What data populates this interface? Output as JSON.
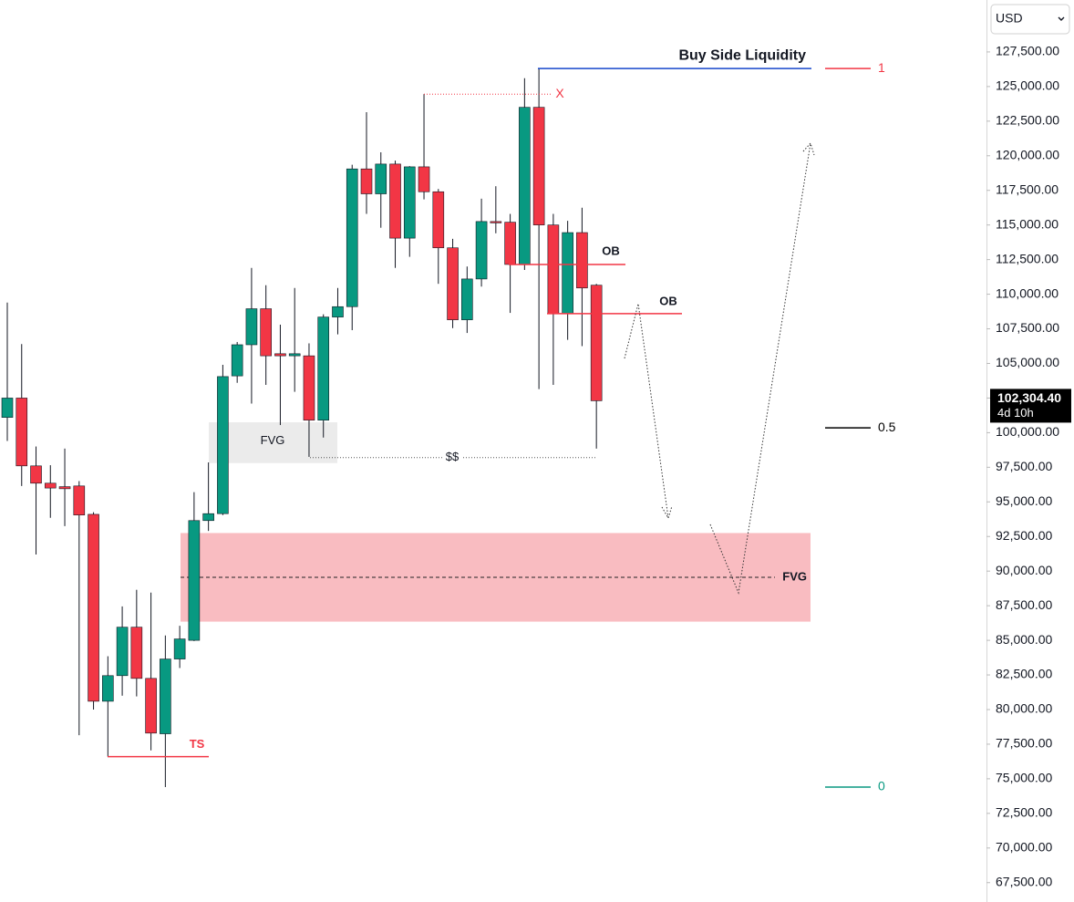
{
  "chart_data": {
    "type": "candlestick",
    "currency": "USD",
    "open": [
      101100,
      102500,
      97600,
      96350,
      96100,
      96150,
      94100,
      80600,
      82450,
      85950,
      82250,
      78250,
      83650,
      85000,
      93650,
      94150,
      104100,
      106350,
      108950,
      105700,
      105550,
      105550,
      100900,
      108350,
      109100,
      119050,
      117250,
      119400,
      114050,
      119200,
      117400,
      113350,
      108150,
      111100,
      115250,
      115200,
      112150,
      123500,
      115000,
      108600,
      114450,
      110650
    ],
    "high": [
      109400,
      106400,
      99000,
      97650,
      98850,
      96500,
      94250,
      83850,
      87450,
      88650,
      88450,
      85350,
      86050,
      95700,
      97850,
      104900,
      106550,
      111900,
      110650,
      107800,
      110450,
      106450,
      108550,
      110450,
      119350,
      123150,
      120250,
      119650,
      119250,
      124450,
      117600,
      114000,
      112000,
      116900,
      117800,
      115800,
      125600,
      126300,
      115800,
      115300,
      116250,
      110750
    ],
    "low": [
      99400,
      96150,
      91200,
      93850,
      93250,
      78150,
      80000,
      76600,
      81000,
      80950,
      77050,
      74400,
      83000,
      84950,
      92900,
      94050,
      103600,
      102100,
      103450,
      100550,
      102950,
      98250,
      99650,
      107100,
      107400,
      115800,
      114800,
      111900,
      112700,
      116850,
      110750,
      107550,
      107200,
      110550,
      114400,
      108650,
      111750,
      103150,
      103450,
      106700,
      106250,
      98850
    ],
    "close": [
      102500,
      97600,
      96350,
      96000,
      95950,
      94050,
      80600,
      82450,
      85950,
      82250,
      78300,
      83650,
      85100,
      93650,
      94150,
      104050,
      106350,
      108950,
      105550,
      105550,
      105700,
      100900,
      108350,
      109100,
      119050,
      117250,
      119400,
      114050,
      119200,
      117400,
      113350,
      108150,
      111100,
      115250,
      115200,
      112150,
      123500,
      115000,
      108600,
      114450,
      110450,
      102304.4
    ],
    "up_color": "#089981",
    "down_color": "#f23645",
    "last_price_label": "102,304.40",
    "countdown": "4d 10h",
    "ylim": [
      66100,
      131250
    ],
    "yticks": [
      {
        "value": 67500,
        "label": "67,500.00"
      },
      {
        "value": 70000,
        "label": "70,000.00"
      },
      {
        "value": 72500,
        "label": "72,500.00"
      },
      {
        "value": 75000,
        "label": "75,000.00"
      },
      {
        "value": 77500,
        "label": "77,500.00"
      },
      {
        "value": 80000,
        "label": "80,000.00"
      },
      {
        "value": 82500,
        "label": "82,500.00"
      },
      {
        "value": 85000,
        "label": "85,000.00"
      },
      {
        "value": 87500,
        "label": "87,500.00"
      },
      {
        "value": 90000,
        "label": "90,000.00"
      },
      {
        "value": 92500,
        "label": "92,500.00"
      },
      {
        "value": 95000,
        "label": "95,000.00"
      },
      {
        "value": 97500,
        "label": "97,500.00"
      },
      {
        "value": 100000,
        "label": "100,000.00"
      },
      {
        "value": 102500,
        "label": "102,500.00"
      },
      {
        "value": 105000,
        "label": "105,000.00"
      },
      {
        "value": 107500,
        "label": "107,500.00"
      },
      {
        "value": 110000,
        "label": "110,000.00"
      },
      {
        "value": 112500,
        "label": "112,500.00"
      },
      {
        "value": 115000,
        "label": "115,000.00"
      },
      {
        "value": 117500,
        "label": "117,500.00"
      },
      {
        "value": 120000,
        "label": "120,000.00"
      },
      {
        "value": 122500,
        "label": "122,500.00"
      },
      {
        "value": 125000,
        "label": "125,000.00"
      },
      {
        "value": 127500,
        "label": "127,500.00"
      }
    ],
    "annotations": [
      {
        "text": "Buy Side Liquidity",
        "value": 126300,
        "color": "#1848cc"
      },
      {
        "text": "X",
        "value": 124450,
        "color": "#f23645"
      },
      {
        "text": "OB",
        "value": 112150,
        "color": "#f23645"
      },
      {
        "text": "OB",
        "value": 108600,
        "color": "#f23645"
      },
      {
        "text": "$$",
        "value": 98200,
        "color": "#555555"
      },
      {
        "text": "TS",
        "value": 76600,
        "color": "#f23645"
      }
    ],
    "zones": [
      {
        "text": "FVG",
        "top": 100750,
        "bottom": 97800,
        "color": "#ebebeb"
      },
      {
        "text": "FVG",
        "top": 92750,
        "bottom": 86350,
        "mid": 89550,
        "color": "#f9bcc1"
      }
    ],
    "fib_levels": [
      {
        "level": 1,
        "value": 126300,
        "color": "#f23645"
      },
      {
        "level": 0.5,
        "value": 100350,
        "color": "#000000"
      },
      {
        "level": 0,
        "value": 74400,
        "color": "#089981"
      }
    ]
  }
}
